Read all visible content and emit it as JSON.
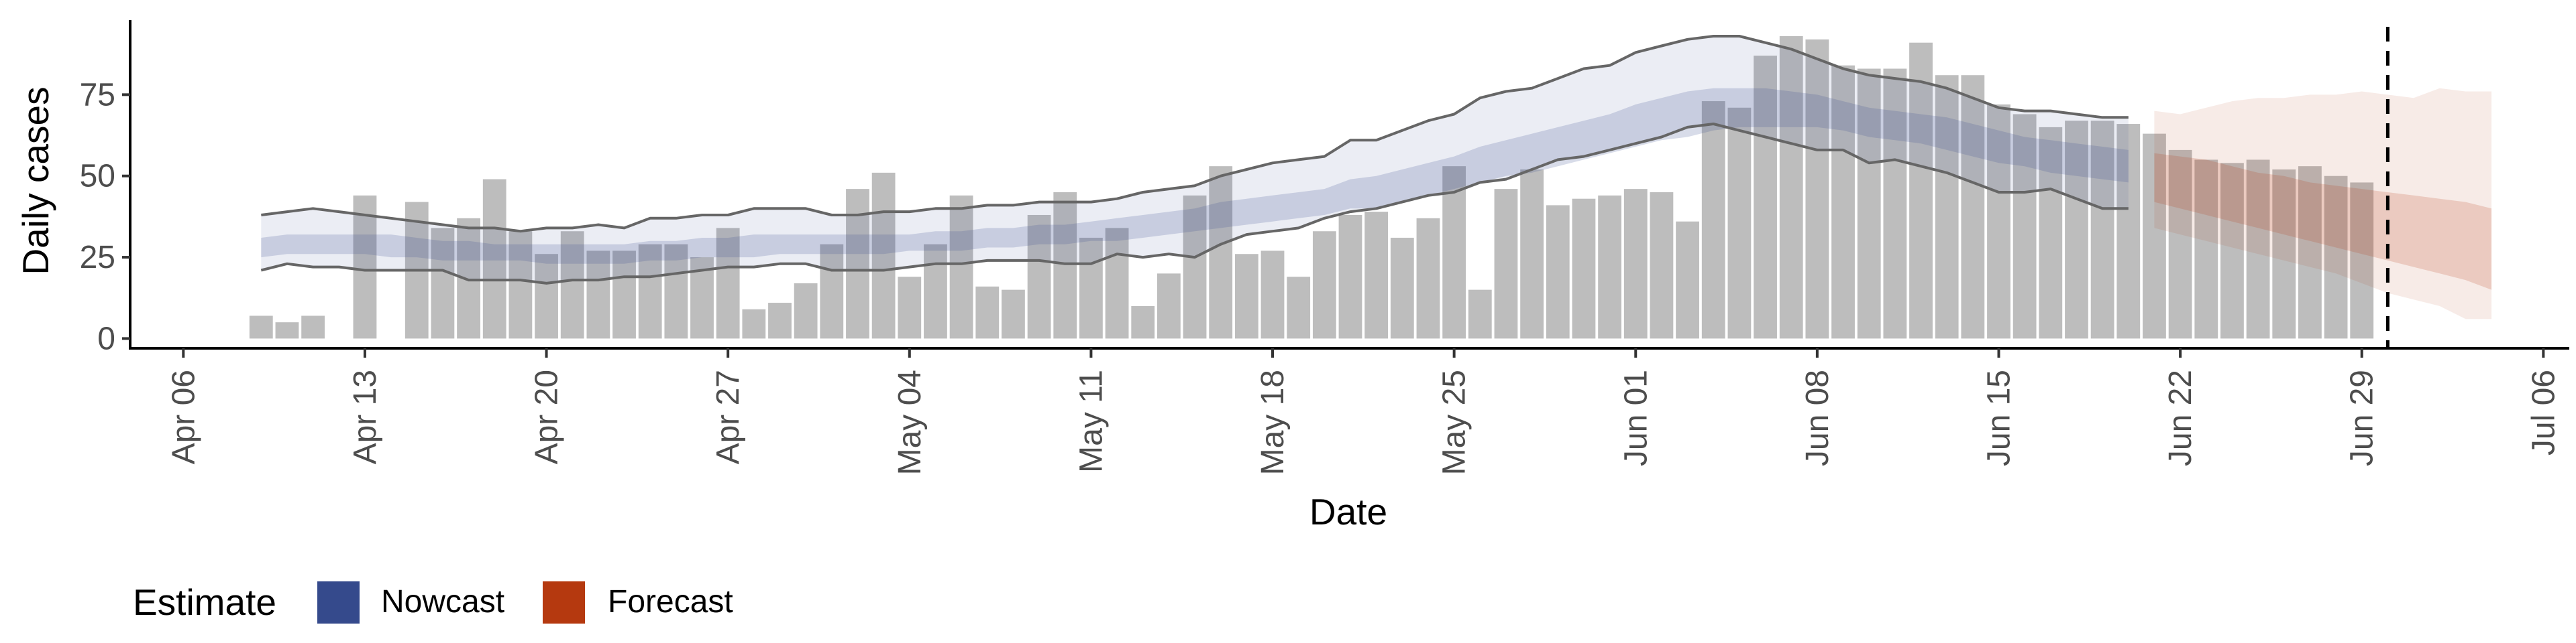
{
  "chart_data": {
    "type": "bar",
    "xlabel": "Date",
    "ylabel": "Daily cases",
    "x_range": [
      "2020-04-04",
      "2020-07-07"
    ],
    "ylim": [
      -3,
      100
    ],
    "x_ticks": [
      "2020-04-06",
      "2020-04-13",
      "2020-04-20",
      "2020-04-27",
      "2020-05-04",
      "2020-05-11",
      "2020-05-18",
      "2020-05-25",
      "2020-06-01",
      "2020-06-08",
      "2020-06-15",
      "2020-06-22",
      "2020-06-29",
      "2020-07-06"
    ],
    "x_tick_labels": [
      "Apr 06",
      "Apr 13",
      "Apr 20",
      "Apr 27",
      "May 04",
      "May 11",
      "May 18",
      "May 25",
      "Jun 01",
      "Jun 08",
      "Jun 15",
      "Jun 22",
      "Jun 29",
      "Jul 06"
    ],
    "y_ticks": [
      0,
      25,
      50,
      75
    ],
    "y_tick_labels": [
      "0",
      "25",
      "50",
      "75"
    ],
    "reference_line_date": "2020-06-30",
    "colors": {
      "bars": "#bdbdbd",
      "nowcast": "#3b4f8f",
      "forecast": "#b5390f",
      "ci_line": "#666666",
      "axis": "#000000",
      "tick_text": "#4d4d4d"
    },
    "bars": {
      "start_date": "2020-04-09",
      "values": [
        7,
        5,
        7,
        0,
        44,
        0,
        42,
        34,
        37,
        49,
        33,
        26,
        33,
        27,
        27,
        29,
        29,
        25,
        34,
        9,
        11,
        17,
        29,
        46,
        51,
        19,
        29,
        44,
        16,
        15,
        38,
        45,
        31,
        34,
        10,
        20,
        44,
        53,
        26,
        27,
        19,
        33,
        38,
        39,
        31,
        37,
        53,
        15,
        46,
        52,
        41,
        43,
        44,
        46,
        45,
        36,
        73,
        71,
        87,
        93,
        92,
        84,
        83,
        83,
        91,
        81,
        81,
        72,
        69,
        65,
        67,
        67,
        66,
        63,
        58,
        55,
        54,
        55,
        52,
        53,
        50,
        48
      ]
    },
    "series": [
      {
        "name": "Nowcast",
        "start_date": "2020-04-09",
        "upper_90": [
          38,
          39,
          40,
          39,
          38,
          37,
          36,
          35,
          34,
          34,
          33,
          34,
          34,
          35,
          34,
          37,
          37,
          38,
          38,
          40,
          40,
          40,
          38,
          38,
          39,
          39,
          40,
          40,
          41,
          41,
          42,
          42,
          42,
          43,
          45,
          46,
          47,
          50,
          52,
          54,
          55,
          56,
          61,
          61,
          64,
          67,
          69,
          74,
          76,
          77,
          80,
          83,
          84,
          88,
          90,
          92,
          93,
          93,
          91,
          89,
          86,
          83,
          81,
          80,
          79,
          77,
          74,
          71,
          70,
          70,
          69,
          68,
          68
        ],
        "upper_50": [
          31,
          32,
          32,
          32,
          32,
          32,
          31,
          30,
          30,
          29,
          29,
          29,
          29,
          29,
          29,
          30,
          30,
          31,
          31,
          32,
          32,
          32,
          32,
          32,
          32,
          32,
          33,
          33,
          34,
          34,
          35,
          35,
          36,
          37,
          38,
          39,
          40,
          42,
          43,
          44,
          45,
          46,
          49,
          50,
          52,
          54,
          56,
          59,
          61,
          63,
          65,
          67,
          69,
          72,
          74,
          76,
          77,
          77,
          77,
          76,
          75,
          73,
          71,
          70,
          69,
          68,
          66,
          64,
          62,
          61,
          60,
          59,
          58
        ],
        "median": [
          28,
          29,
          29,
          29,
          29,
          28,
          28,
          27,
          27,
          27,
          26,
          26,
          26,
          26,
          26,
          27,
          27,
          28,
          28,
          28,
          29,
          29,
          29,
          29,
          29,
          29,
          30,
          30,
          31,
          31,
          32,
          32,
          33,
          34,
          35,
          36,
          37,
          38,
          39,
          40,
          41,
          42,
          44,
          45,
          47,
          49,
          51,
          53,
          55,
          57,
          59,
          61,
          63,
          65,
          67,
          69,
          70,
          71,
          72,
          72,
          71,
          70,
          68,
          67,
          66,
          64,
          62,
          60,
          58,
          56,
          55,
          54,
          53
        ],
        "lower_50": [
          25,
          26,
          26,
          26,
          26,
          25,
          25,
          24,
          24,
          24,
          24,
          23,
          23,
          23,
          23,
          24,
          24,
          25,
          25,
          25,
          26,
          26,
          26,
          26,
          26,
          27,
          27,
          27,
          28,
          28,
          29,
          29,
          30,
          30,
          31,
          32,
          33,
          34,
          35,
          36,
          37,
          38,
          40,
          40,
          42,
          44,
          46,
          48,
          50,
          51,
          53,
          55,
          57,
          59,
          61,
          62,
          64,
          65,
          65,
          65,
          65,
          64,
          62,
          61,
          60,
          58,
          56,
          54,
          53,
          51,
          50,
          49,
          48
        ],
        "lower_90": [
          21,
          23,
          22,
          22,
          21,
          21,
          21,
          21,
          18,
          18,
          18,
          17,
          18,
          18,
          19,
          19,
          20,
          21,
          22,
          22,
          23,
          23,
          21,
          21,
          21,
          22,
          23,
          23,
          24,
          24,
          24,
          23,
          23,
          26,
          25,
          26,
          25,
          29,
          32,
          33,
          34,
          37,
          39,
          40,
          42,
          44,
          45,
          48,
          49,
          52,
          55,
          56,
          58,
          60,
          62,
          65,
          66,
          64,
          62,
          60,
          58,
          58,
          54,
          55,
          53,
          51,
          48,
          45,
          45,
          46,
          43,
          40,
          40
        ]
      },
      {
        "name": "Forecast",
        "start_date": "2020-06-21",
        "upper_90": [
          70,
          69,
          71,
          73,
          74,
          74,
          75,
          75,
          76,
          75,
          74,
          77,
          76,
          76
        ],
        "upper_50": [
          57,
          56,
          55,
          53,
          51,
          50,
          48,
          47,
          46,
          45,
          44,
          43,
          42,
          40
        ],
        "median": [
          48,
          46,
          44,
          42,
          40,
          38,
          36,
          34,
          32,
          30,
          28,
          26,
          23,
          20
        ],
        "lower_50": [
          42,
          40,
          38,
          36,
          34,
          32,
          30,
          28,
          26,
          24,
          22,
          20,
          18,
          15
        ],
        "lower_90": [
          34,
          32,
          30,
          28,
          26,
          24,
          22,
          20,
          17,
          14,
          12,
          10,
          6,
          6
        ]
      }
    ],
    "legend": {
      "title": "Estimate",
      "items": [
        {
          "label": "Nowcast",
          "color": "#354a8c"
        },
        {
          "label": "Forecast",
          "color": "#b5390f"
        }
      ],
      "position": "bottom-left"
    }
  }
}
